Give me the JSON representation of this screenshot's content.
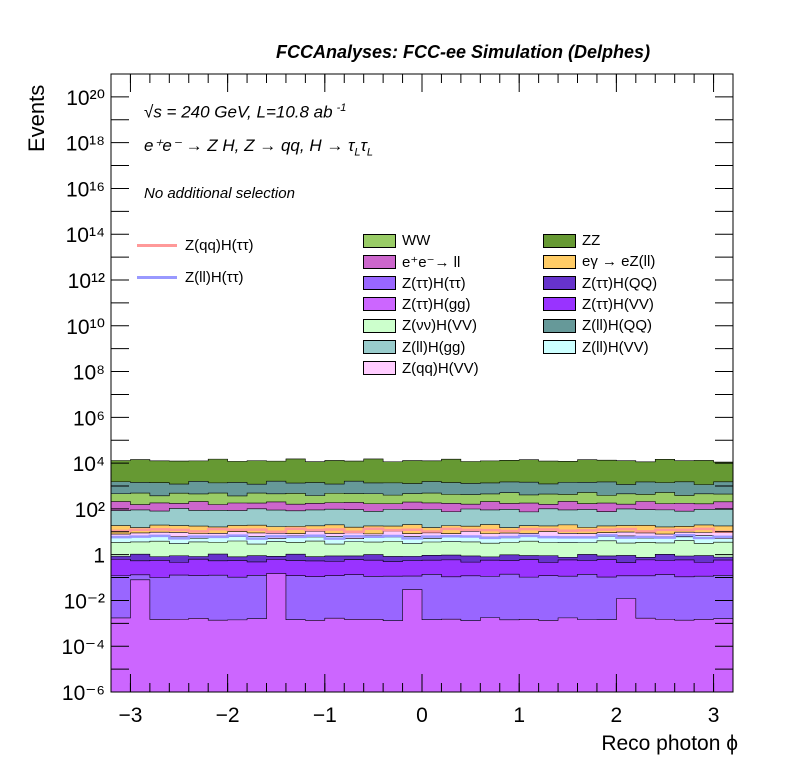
{
  "header": {
    "title": "FCCAnalyses: FCC-ee Simulation (Delphes)"
  },
  "annotations": {
    "energy_line": "√s = 240 GeV, L=10.8 ab",
    "energy_sup": "-1",
    "process_line": "e⁺e⁻ → Z H, Z → qq, H → τ",
    "tau_sub": "L",
    "selection": "No additional selection"
  },
  "chart_data": {
    "type": "area",
    "title": "",
    "xlabel": "Reco photon ϕ",
    "ylabel": "Events",
    "xlim": [
      -3.2,
      3.2
    ],
    "ylim": [
      1e-06,
      1e+21
    ],
    "yscale": "log",
    "x_ticks": [
      "−3",
      "−2",
      "−1",
      "0",
      "1",
      "2",
      "3"
    ],
    "y_ticks": [
      "10⁻⁶",
      "10⁻⁴",
      "10⁻²",
      "1",
      "10²",
      "10⁴",
      "10⁶",
      "10⁸",
      "10¹⁰",
      "10¹²",
      "10¹⁴",
      "10¹⁶",
      "10¹⁸",
      "10²⁰"
    ],
    "bins": 32,
    "stack_tops": [
      {
        "name": "Z(ττ)H(gg)",
        "color": "#cc66ff",
        "level": 0.0015,
        "dips": {
          "1": 0.08,
          "8": 0.15,
          "15": 0.03,
          "26": 0.012
        }
      },
      {
        "name": "Z(ττ)H(ττ)",
        "color": "#9966ff",
        "level": 0.12
      },
      {
        "name": "Z(ττ)H(VV)",
        "color": "#9933ff",
        "level": 0.55
      },
      {
        "name": "Z(ττ)H(QQ)",
        "color": "#6633cc",
        "level": 0.9
      },
      {
        "name": "Z(νν)H(VV)",
        "color": "#ccffcc",
        "level": 3.5
      },
      {
        "name": "Z(ll)H(VV)",
        "color": "#ccffff",
        "level": 6
      },
      {
        "name": "Z(qq)H(VV)",
        "color": "#ffccff",
        "level": 9
      },
      {
        "name": "eγ → eZ(ll)",
        "color": "#ffcc66",
        "level": 18
      },
      {
        "name": "Z(ll)H(gg)",
        "color": "#99cccc",
        "level": 90
      },
      {
        "name": "e⁺e⁻→ ll",
        "color": "#cc66cc",
        "level": 180
      },
      {
        "name": "WW",
        "color": "#99cc66",
        "level": 450
      },
      {
        "name": "Z(ll)H(QQ)",
        "color": "#669999",
        "level": 1400
      },
      {
        "name": "ZZ",
        "color": "#669933",
        "level": 13000
      }
    ],
    "signal_lines": [
      {
        "name": "Z(qq)H(ττ)",
        "color": "#ff9999",
        "level": 12
      },
      {
        "name": "Z(ll)H(ττ)",
        "color": "#9999ff",
        "level": 6
      }
    ],
    "legend": {
      "columns": [
        [
          "WW",
          "e⁺e⁻→ ll",
          "Z(ττ)H(ττ)",
          "Z(ττ)H(gg)",
          "Z(νν)H(VV)",
          "Z(ll)H(gg)",
          "Z(qq)H(VV)"
        ],
        [
          "ZZ",
          "eγ → eZ(ll)",
          "Z(ττ)H(QQ)",
          "Z(ττ)H(VV)",
          "Z(ll)H(QQ)",
          "Z(ll)H(VV)"
        ]
      ],
      "lines": [
        "Z(qq)H(ττ)",
        "Z(ll)H(ττ)"
      ]
    }
  }
}
